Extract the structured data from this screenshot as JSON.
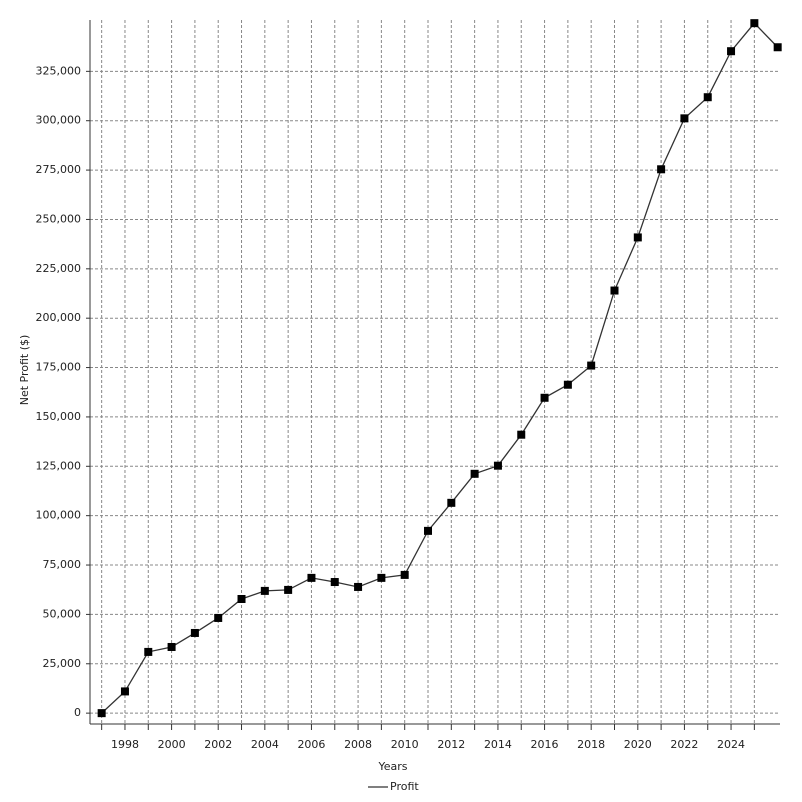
{
  "chart_data": {
    "type": "line",
    "x_label": "Years",
    "y_label": "Net Profit ($)",
    "x": [
      1997,
      1998,
      1999,
      2000,
      2001,
      2002,
      2003,
      2004,
      2005,
      2006,
      2007,
      2008,
      2009,
      2010,
      2011,
      2012,
      2013,
      2014,
      2015,
      2016,
      2017,
      2018,
      2019,
      2020,
      2021,
      2022,
      2023,
      2024,
      2025,
      2026
    ],
    "series": [
      {
        "name": "Profit",
        "color": "#333333",
        "values": [
          0,
          11000,
          31000,
          33500,
          40600,
          48200,
          57800,
          61900,
          62400,
          68500,
          66400,
          63900,
          68500,
          70000,
          92300,
          106500,
          121200,
          125300,
          141000,
          159700,
          166300,
          176000,
          214000,
          240900,
          275400,
          301200,
          311900,
          335200,
          349400,
          337200
        ]
      }
    ],
    "xlim": [
      1996.5,
      2026.1
    ],
    "xticks": [
      1998,
      2000,
      2002,
      2004,
      2006,
      2008,
      2010,
      2012,
      2014,
      2016,
      2018,
      2020,
      2022,
      2024
    ],
    "ylim": [
      -5500,
      351000
    ],
    "yticks": [
      0,
      {
        "value": 25000,
        "label": "25,000"
      },
      {
        "value": 50000,
        "label": "50,000"
      },
      {
        "value": 75000,
        "label": "75,000"
      },
      {
        "value": 100000,
        "label": "100,000"
      },
      {
        "value": 125000,
        "label": "125,000"
      },
      {
        "value": 150000,
        "label": "150,000"
      },
      {
        "value": 175000,
        "label": "175,000"
      },
      {
        "value": 200000,
        "label": "200,000"
      },
      {
        "value": 225000,
        "label": "225,000"
      },
      {
        "value": 250000,
        "label": "250,000"
      },
      {
        "value": 275000,
        "label": "275,000"
      },
      {
        "value": 300000,
        "label": "300,000"
      },
      {
        "value": 325000,
        "label": "325,000"
      }
    ],
    "grid": true,
    "legend": "bottom"
  }
}
